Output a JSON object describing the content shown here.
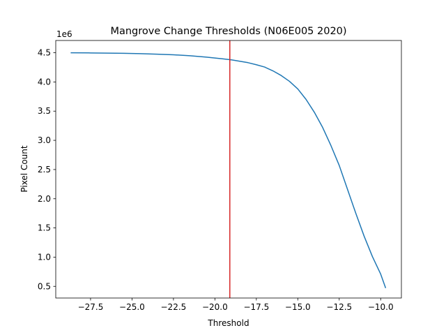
{
  "chart_data": {
    "type": "line",
    "title": "Mangrove Change Thresholds (N06E005 2020)",
    "xlabel": "Threshold",
    "ylabel": "Pixel Count",
    "y_scale_label": "1e6",
    "xlim": [
      -29.6,
      -8.75
    ],
    "ylim": [
      300000,
      4710000
    ],
    "xticks": [
      -27.5,
      -25.0,
      -22.5,
      -20.0,
      -17.5,
      -15.0,
      -12.5,
      -10.0
    ],
    "xtick_labels": [
      "−27.5",
      "−25.0",
      "−22.5",
      "−20.0",
      "−17.5",
      "−15.0",
      "−12.5",
      "−10.0"
    ],
    "yticks": [
      500000,
      1000000,
      1500000,
      2000000,
      2500000,
      3000000,
      3500000,
      4000000,
      4500000
    ],
    "ytick_labels": [
      "0.5",
      "1.0",
      "1.5",
      "2.0",
      "2.5",
      "3.0",
      "3.5",
      "4.0",
      "4.5"
    ],
    "grid": false,
    "series": [
      {
        "color": "#1f77b4",
        "x": [
          -28.7,
          -27.5,
          -26.5,
          -25.5,
          -24.5,
          -23.5,
          -22.5,
          -21.5,
          -20.5,
          -19.5,
          -19.0,
          -18.5,
          -18.0,
          -17.5,
          -17.0,
          -16.5,
          -16.0,
          -15.5,
          -15.0,
          -14.5,
          -14.0,
          -13.5,
          -13.0,
          -12.5,
          -12.0,
          -11.5,
          -11.0,
          -10.5,
          -10.0,
          -9.7
        ],
        "y": [
          4500000,
          4497000,
          4494000,
          4490000,
          4484000,
          4476000,
          4465000,
          4448000,
          4425000,
          4395000,
          4378000,
          4355000,
          4330000,
          4295000,
          4255000,
          4190000,
          4110000,
          4010000,
          3880000,
          3700000,
          3480000,
          3220000,
          2910000,
          2570000,
          2160000,
          1750000,
          1360000,
          1010000,
          710000,
          470000
        ]
      }
    ],
    "reference_lines": [
      {
        "orientation": "vertical",
        "x": -19.1,
        "color": "#d62728"
      }
    ]
  }
}
